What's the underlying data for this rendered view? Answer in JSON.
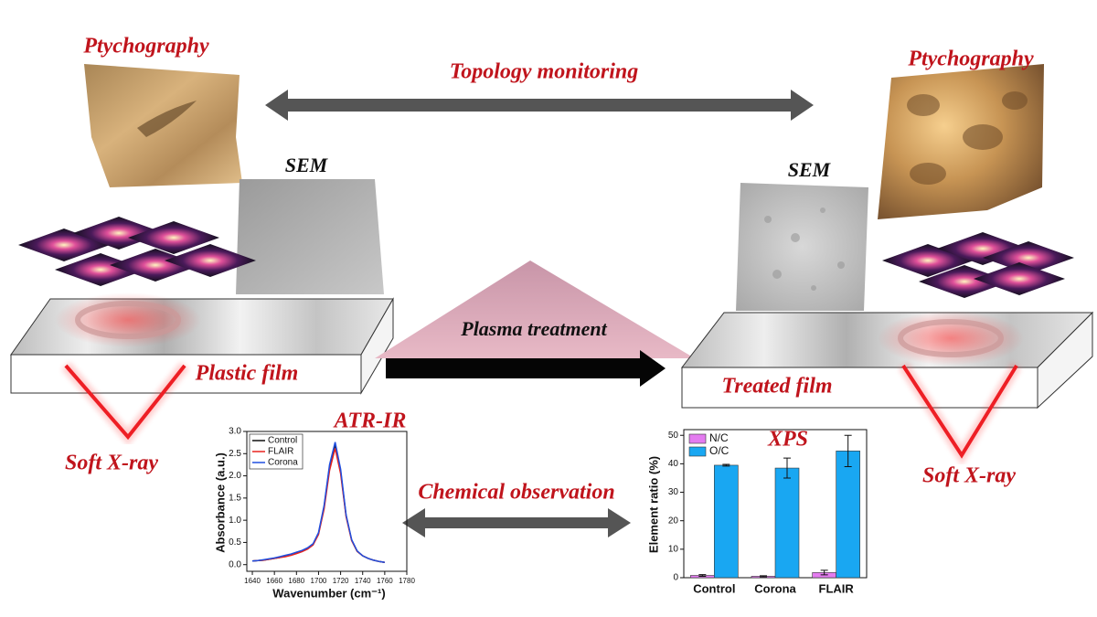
{
  "labels": {
    "ptychography_left": "Ptychography",
    "ptychography_right": "Ptychography",
    "topology": "Topology monitoring",
    "sem_left": "SEM",
    "sem_right": "SEM",
    "plasma": "Plasma treatment",
    "plastic_film": "Plastic film",
    "treated_film": "Treated film",
    "soft_xray_left": "Soft X-ray",
    "soft_xray_right": "Soft X-ray",
    "chemical": "Chemical observation"
  },
  "atr_ir": {
    "type": "line",
    "title": "ATR-IR",
    "x_label": "Wavenumber (cm⁻¹)",
    "y_label": "Absorbance (a.u.)",
    "xlim": [
      1635,
      1780
    ],
    "xticks": [
      1640,
      1660,
      1680,
      1700,
      1720,
      1740,
      1760,
      1780
    ],
    "ylim": [
      -0.15,
      3.0
    ],
    "yticks": [
      {
        "value": 0,
        "label": "0.0"
      },
      0.5,
      {
        "value": 1,
        "label": "1.0"
      },
      1.5,
      {
        "value": 2,
        "label": "2.0"
      },
      2.5,
      {
        "value": 3,
        "label": "3.0"
      }
    ],
    "legend": "upper left",
    "x": [
      1640,
      1645,
      1650,
      1655,
      1660,
      1665,
      1670,
      1675,
      1680,
      1685,
      1690,
      1695,
      1700,
      1705,
      1710,
      1715,
      1720,
      1725,
      1730,
      1735,
      1740,
      1745,
      1750,
      1755,
      1760
    ],
    "series": [
      {
        "name": "Control",
        "color": "#111111",
        "values": [
          0.08,
          0.09,
          0.1,
          0.12,
          0.14,
          0.16,
          0.19,
          0.22,
          0.26,
          0.3,
          0.36,
          0.45,
          0.7,
          1.3,
          2.2,
          2.7,
          2.1,
          1.1,
          0.55,
          0.3,
          0.2,
          0.14,
          0.1,
          0.07,
          0.05
        ]
      },
      {
        "name": "FLAIR",
        "color": "#e8231e",
        "values": [
          0.08,
          0.09,
          0.1,
          0.12,
          0.14,
          0.16,
          0.18,
          0.21,
          0.25,
          0.29,
          0.35,
          0.44,
          0.68,
          1.25,
          2.12,
          2.62,
          2.05,
          1.08,
          0.54,
          0.3,
          0.2,
          0.14,
          0.1,
          0.07,
          0.05
        ]
      },
      {
        "name": "Corona",
        "color": "#1f4fe0",
        "values": [
          0.08,
          0.09,
          0.11,
          0.13,
          0.15,
          0.18,
          0.21,
          0.24,
          0.28,
          0.32,
          0.38,
          0.47,
          0.72,
          1.33,
          2.25,
          2.76,
          2.15,
          1.12,
          0.56,
          0.31,
          0.2,
          0.14,
          0.1,
          0.07,
          0.05
        ]
      }
    ]
  },
  "xps": {
    "type": "bar",
    "title": "XPS",
    "y_label": "Element ratio (%)",
    "categories": [
      "Control",
      "Corona",
      "FLAIR"
    ],
    "ylim": [
      0,
      52
    ],
    "yticks": [
      0,
      10,
      20,
      30,
      40,
      50
    ],
    "legend": "upper left",
    "series": [
      {
        "name": "N/C",
        "color": "#e47cf0",
        "values": [
          0.8,
          0.5,
          1.8
        ],
        "errors": [
          0.3,
          0.2,
          0.8
        ]
      },
      {
        "name": "O/C",
        "color": "#19a7f2",
        "values": [
          39.5,
          38.5,
          44.5
        ],
        "errors": [
          0.3,
          3.5,
          5.5
        ]
      }
    ]
  }
}
